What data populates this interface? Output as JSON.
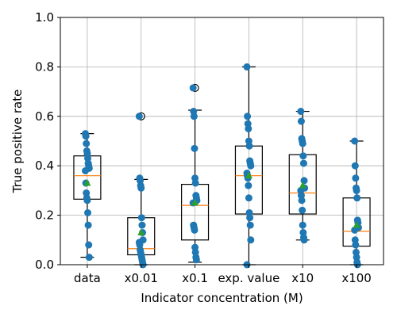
{
  "chart_data": {
    "type": "box",
    "title": "",
    "xlabel": "Indicator concentration (M)",
    "ylabel": "True positive rate",
    "ylim": [
      0,
      1.0
    ],
    "yticks": [
      "0.0",
      "0.2",
      "0.4",
      "0.6",
      "0.8",
      "1.0"
    ],
    "grid": true,
    "categories": [
      "data",
      "x0.01",
      "x0.1",
      "exp. value",
      "x10",
      "x100"
    ],
    "colors": {
      "box": "#000000",
      "median": "#ff7f0e",
      "mean": "#2ca02c",
      "points": "#1f77b4",
      "grid": "#b0b0b0"
    },
    "boxes": [
      {
        "category": "data",
        "whisker_low": 0.03,
        "q1": 0.265,
        "median": 0.36,
        "q3": 0.44,
        "whisker_high": 0.53,
        "mean": 0.33,
        "outliers": [],
        "points": [
          0.53,
          0.52,
          0.49,
          0.46,
          0.45,
          0.43,
          0.41,
          0.4,
          0.39,
          0.38,
          0.33,
          0.29,
          0.27,
          0.26,
          0.21,
          0.16,
          0.08,
          0.03
        ]
      },
      {
        "category": "x0.01",
        "whisker_low": 0.0,
        "q1": 0.04,
        "median": 0.065,
        "q3": 0.19,
        "whisker_high": 0.345,
        "mean": 0.13,
        "outliers": [
          0.6
        ],
        "points": [
          0.6,
          0.35,
          0.34,
          0.32,
          0.31,
          0.19,
          0.16,
          0.13,
          0.1,
          0.09,
          0.08,
          0.06,
          0.05,
          0.04,
          0.03,
          0.02,
          0.01,
          0.0
        ]
      },
      {
        "category": "x0.1",
        "whisker_low": 0.01,
        "q1": 0.1,
        "median": 0.24,
        "q3": 0.325,
        "whisker_high": 0.625,
        "mean": 0.25,
        "outliers": [
          0.715
        ],
        "points": [
          0.715,
          0.62,
          0.6,
          0.47,
          0.35,
          0.33,
          0.28,
          0.27,
          0.26,
          0.25,
          0.16,
          0.15,
          0.14,
          0.07,
          0.05,
          0.03,
          0.02
        ]
      },
      {
        "category": "exp. value",
        "whisker_low": 0.0,
        "q1": 0.205,
        "median": 0.36,
        "q3": 0.48,
        "whisker_high": 0.8,
        "mean": 0.36,
        "outliers": [],
        "points": [
          0.8,
          0.6,
          0.57,
          0.55,
          0.5,
          0.48,
          0.42,
          0.41,
          0.4,
          0.37,
          0.36,
          0.35,
          0.32,
          0.27,
          0.21,
          0.19,
          0.16,
          0.1,
          0.0
        ]
      },
      {
        "category": "x10",
        "whisker_low": 0.1,
        "q1": 0.205,
        "median": 0.29,
        "q3": 0.445,
        "whisker_high": 0.62,
        "mean": 0.32,
        "outliers": [],
        "points": [
          0.62,
          0.58,
          0.51,
          0.5,
          0.49,
          0.44,
          0.41,
          0.34,
          0.31,
          0.3,
          0.28,
          0.26,
          0.22,
          0.16,
          0.13,
          0.11,
          0.1
        ]
      },
      {
        "category": "x100",
        "whisker_low": 0.0,
        "q1": 0.075,
        "median": 0.135,
        "q3": 0.27,
        "whisker_high": 0.5,
        "mean": 0.16,
        "outliers": [],
        "points": [
          0.5,
          0.4,
          0.35,
          0.31,
          0.3,
          0.27,
          0.18,
          0.17,
          0.15,
          0.14,
          0.1,
          0.08,
          0.05,
          0.03,
          0.01,
          0.0
        ]
      }
    ]
  }
}
